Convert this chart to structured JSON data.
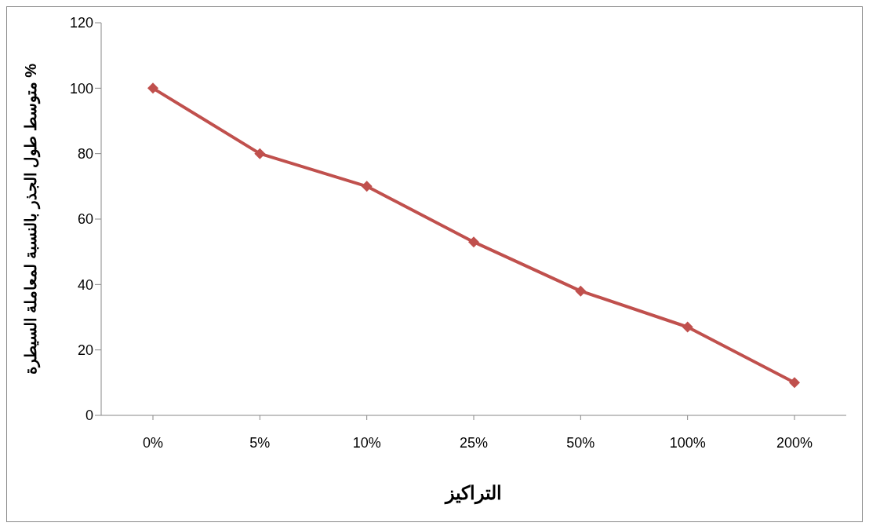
{
  "chart_data": {
    "type": "line",
    "xlabel": "التراكيز",
    "ylabel": "متوسط طول الجذر بالنسبة لمعاملة السيطرة %",
    "categories": [
      "0%",
      "5%",
      "10%",
      "25%",
      "50%",
      "100%",
      "200%"
    ],
    "series": [
      {
        "color": "#c0504d",
        "values": [
          100,
          80,
          70,
          53,
          38,
          27,
          10
        ]
      }
    ],
    "ylim": [
      0,
      120
    ],
    "yticks": [
      0,
      20,
      40,
      60,
      80,
      100,
      120
    ],
    "marker": "diamond",
    "line_style": "solid"
  }
}
